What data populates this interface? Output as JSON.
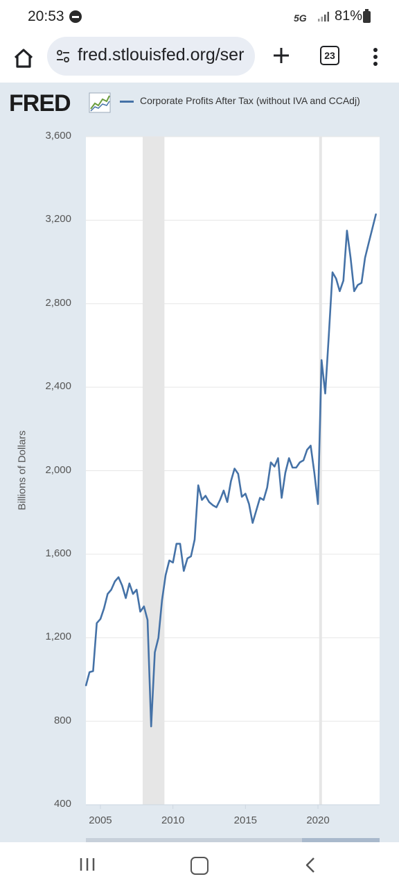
{
  "status_bar": {
    "time": "20:53",
    "network": "5G",
    "battery": "81%",
    "icons": [
      "do-not-disturb-icon",
      "signal-icon",
      "battery-icon"
    ]
  },
  "browser": {
    "url": "fred.stlouisfed.org/ser",
    "tab_count": "23",
    "icons": [
      "home-icon",
      "site-info-icon",
      "new-tab-icon",
      "tab-switcher-icon",
      "overflow-menu-icon"
    ]
  },
  "colors": {
    "line": "#4572a7",
    "panel_bg": "#e1e9f0",
    "recession": "#e6e6e6",
    "grid": "#e6e6e6"
  },
  "chart_data": {
    "type": "line",
    "logo": "FRED",
    "series": [
      {
        "name": "Corporate Profits After Tax (without IVA and CCAdj)",
        "x": [
          "2004-01-01",
          "2004-04-01",
          "2004-07-01",
          "2004-10-01",
          "2005-01-01",
          "2005-04-01",
          "2005-07-01",
          "2005-10-01",
          "2006-01-01",
          "2006-04-01",
          "2006-07-01",
          "2006-10-01",
          "2007-01-01",
          "2007-04-01",
          "2007-07-01",
          "2007-10-01",
          "2008-01-01",
          "2008-04-01",
          "2008-07-01",
          "2008-10-01",
          "2009-01-01",
          "2009-04-01",
          "2009-07-01",
          "2009-10-01",
          "2010-01-01",
          "2010-04-01",
          "2010-07-01",
          "2010-10-01",
          "2011-01-01",
          "2011-04-01",
          "2011-07-01",
          "2011-10-01",
          "2012-01-01",
          "2012-04-01",
          "2012-07-01",
          "2012-10-01",
          "2013-01-01",
          "2013-04-01",
          "2013-07-01",
          "2013-10-01",
          "2014-01-01",
          "2014-04-01",
          "2014-07-01",
          "2014-10-01",
          "2015-01-01",
          "2015-04-01",
          "2015-07-01",
          "2015-10-01",
          "2016-01-01",
          "2016-04-01",
          "2016-07-01",
          "2016-10-01",
          "2017-01-01",
          "2017-04-01",
          "2017-07-01",
          "2017-10-01",
          "2018-01-01",
          "2018-04-01",
          "2018-07-01",
          "2018-10-01",
          "2019-01-01",
          "2019-04-01",
          "2019-07-01",
          "2019-10-01",
          "2020-01-01",
          "2020-04-01",
          "2020-07-01",
          "2020-10-01",
          "2021-01-01",
          "2021-04-01",
          "2021-07-01",
          "2021-10-01",
          "2022-01-01",
          "2022-04-01",
          "2022-07-01",
          "2022-10-01",
          "2023-01-01",
          "2023-04-01",
          "2023-07-01",
          "2023-10-01",
          "2024-01-01"
        ],
        "values": [
          970,
          1035,
          1040,
          1270,
          1290,
          1340,
          1410,
          1430,
          1470,
          1490,
          1450,
          1390,
          1460,
          1410,
          1430,
          1325,
          1350,
          1285,
          775,
          1130,
          1200,
          1380,
          1500,
          1570,
          1560,
          1650,
          1650,
          1520,
          1580,
          1590,
          1670,
          1930,
          1860,
          1880,
          1850,
          1835,
          1825,
          1860,
          1905,
          1850,
          1950,
          2010,
          1985,
          1875,
          1890,
          1840,
          1750,
          1810,
          1870,
          1860,
          1920,
          2040,
          2020,
          2060,
          1870,
          1990,
          2060,
          2015,
          2015,
          2040,
          2050,
          2100,
          2120,
          1990,
          1840,
          2530,
          2370,
          2650,
          2950,
          2920,
          2860,
          2910,
          3150,
          3020,
          2860,
          2890,
          2900,
          3020,
          3090,
          3160,
          3230
        ]
      }
    ],
    "ylabel": "Billions of Dollars",
    "ylim": [
      400,
      3600
    ],
    "yticks": [
      "400",
      "800",
      "1,200",
      "1,600",
      "2,000",
      "2,400",
      "2,800",
      "3,200",
      "3,600"
    ],
    "ytick_values": [
      400,
      800,
      1200,
      1600,
      2000,
      2400,
      2800,
      3200,
      3600
    ],
    "xlim": [
      "2004-01-01",
      "2024-04-01"
    ],
    "xticks": [
      "2005",
      "2010",
      "2015",
      "2020"
    ],
    "recessions": [
      [
        "2007-12-01",
        "2009-06-01"
      ],
      [
        "2020-02-01",
        "2020-04-01"
      ]
    ],
    "grid": "horizontal",
    "legend_position": "top"
  },
  "nav_bar": {
    "icons": [
      "recents-icon",
      "home-nav-icon",
      "back-icon"
    ]
  }
}
